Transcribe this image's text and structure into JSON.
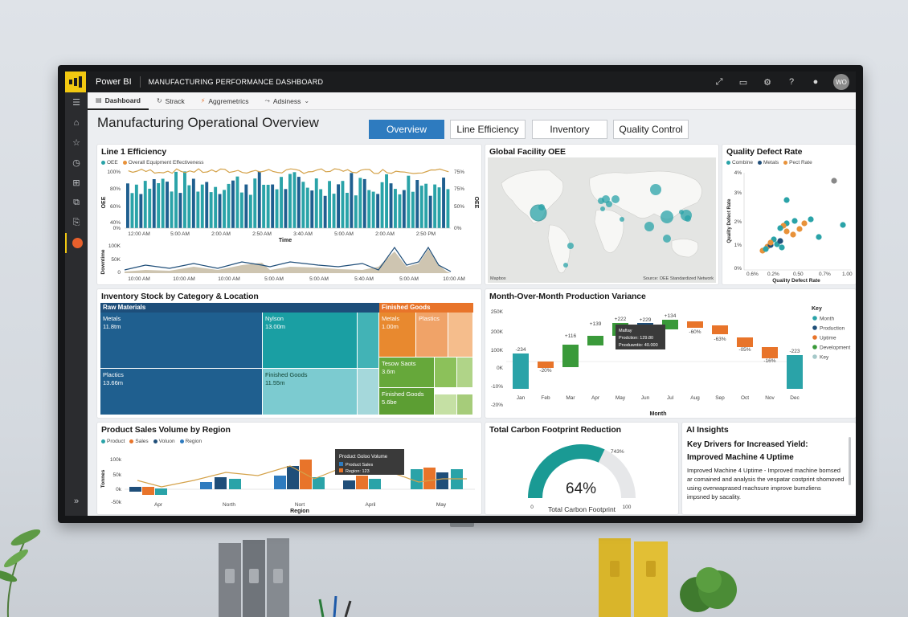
{
  "app": {
    "name": "Power BI",
    "report": "MANUFACTURING PERFORMANCE DASHBOARD",
    "avatar": "WO",
    "topbar_icons": [
      "expand-icon",
      "present-icon",
      "gear-icon",
      "help-icon",
      "feedback-icon"
    ]
  },
  "subnav": {
    "items": [
      {
        "label": "Dashboard",
        "icon": "dashboard-icon",
        "active": true
      },
      {
        "label": "Strack",
        "icon": "refresh-icon"
      },
      {
        "label": "Aggremetrics",
        "icon": "metrics-icon"
      },
      {
        "label": "Adsiness",
        "icon": "share-icon"
      }
    ]
  },
  "rail": {
    "items": [
      "menu-icon",
      "home-icon",
      "star-icon",
      "clock-icon",
      "apps-icon",
      "workspace-icon",
      "deploy-icon",
      "app-logo-icon"
    ],
    "bottom": "expand-chevron-icon"
  },
  "page": {
    "title": "Manufacturing Operational Overview"
  },
  "tabs": [
    {
      "label": "Overview",
      "active": true
    },
    {
      "label": "Line Efficiency"
    },
    {
      "label": "Inventory"
    },
    {
      "label": "Quality Control"
    }
  ],
  "line_eff": {
    "title": "Line 1 Efficiency",
    "legend": [
      {
        "label": "OEE",
        "color": "#2aa3a8"
      },
      {
        "label": "Overall Equipment Effectiveness",
        "color": "#e8923a"
      }
    ],
    "ylabel_left": "OEE",
    "ylabel_right": "OEE",
    "y_left": [
      "100%",
      "80%",
      "60%",
      "40%",
      "0%"
    ],
    "y_right": [
      "75%",
      "75%",
      "50%",
      "25%",
      "0%"
    ],
    "x_ticks": [
      "12:00 AM",
      "5:00 AM",
      "2:00 AM",
      "2:50 AM",
      "3:40 AM",
      "5:00 AM",
      "2:00 AM",
      "2:50 PM"
    ],
    "xlabel": "Time",
    "lower_ylabel": "Downtime",
    "lower_y": [
      "100K",
      "50K",
      "0"
    ],
    "lower_x": [
      "10:00 AM",
      "10:00 AM",
      "10:00 AM",
      "5:00 AM",
      "5:00 AM",
      "5:40 AM",
      "5:00 AM",
      "10:00 AM"
    ]
  },
  "global_oee": {
    "title": "Global Facility OEE",
    "attribution_left": "Mapbox",
    "attribution_right": "Source: OEE Standardized Network"
  },
  "quality": {
    "title": "Quality Defect Rate",
    "legend": [
      {
        "label": "Combine",
        "color": "#2aa3a8"
      },
      {
        "label": "Metals",
        "color": "#1f4e79"
      },
      {
        "label": "Pect Rate",
        "color": "#e8923a"
      }
    ],
    "ylabel": "Quality Defect Rate",
    "xlabel": "Quality Defect Rate",
    "y_ticks": [
      "4%",
      "3%",
      "2%",
      "1%",
      "0%"
    ],
    "x_ticks": [
      "0.6%",
      "0.2%",
      "0.50",
      "0.7%",
      "1.00"
    ]
  },
  "inventory": {
    "title": "Inventory Stock by Category & Location",
    "groups": [
      {
        "label": "Raw Materials",
        "color": "#1d4e7a"
      },
      {
        "label": "Finished Goods",
        "color": "#e8742a"
      }
    ],
    "tiles": [
      {
        "label": "Metals",
        "value": "11.8tm"
      },
      {
        "label": "Nylson",
        "value": "13.00m"
      },
      {
        "label": "Plactics",
        "value": "13.66m"
      },
      {
        "label": "Finished Goods",
        "value": "11.55m"
      },
      {
        "label": "Metals",
        "value": "1.00m"
      },
      {
        "label": "Plastics",
        "value": ""
      },
      {
        "label": "Tesow Saots",
        "value": "3.6m"
      },
      {
        "label": "Finished Goods",
        "value": "5.6be"
      }
    ]
  },
  "mom": {
    "title": "Month-Over-Month Production Variance",
    "y_ticks": [
      "250K",
      "200K",
      "100K",
      "0K",
      "-10%",
      "-20%"
    ],
    "months": [
      "Jan",
      "Feb",
      "Mar",
      "Apr",
      "May",
      "Jun",
      "Jul",
      "Aug",
      "Sep",
      "Oct",
      "Nov",
      "Dec"
    ],
    "labels": [
      "-234",
      "-20%",
      "+116",
      "+139",
      "+222",
      "+229",
      "+134",
      "-60%",
      "-63%",
      "-05%",
      "-16%",
      "-223"
    ],
    "xlabel": "Month",
    "key_title": "Key",
    "key": [
      {
        "label": "Month",
        "color": "#2aa3a8"
      },
      {
        "label": "Production",
        "color": "#1f4e79"
      },
      {
        "label": "Uptime",
        "color": "#e8742a"
      },
      {
        "label": "Development",
        "color": "#3a9a3a"
      },
      {
        "label": "Key",
        "color": "#a5c8c9"
      }
    ],
    "tooltip": [
      "Maftay",
      "Prodction: 129.80",
      "Pnoduwntio: 40.000"
    ]
  },
  "product_sales": {
    "title": "Product Sales Volume by Region",
    "legend": [
      {
        "label": "Product",
        "color": "#2aa3a8"
      },
      {
        "label": "Sales",
        "color": "#e8742a"
      },
      {
        "label": "Voluon",
        "color": "#1f4e79"
      },
      {
        "label": "Region",
        "color": "#2e7bbf"
      }
    ],
    "ylabel": "Tonnes",
    "y_ticks": [
      "100k",
      "50k",
      "0k",
      "-50k"
    ],
    "regions": [
      "Apr",
      "North",
      "Nort Region",
      "April",
      "May"
    ],
    "region_labels": [
      "Apr",
      "North",
      "Nort",
      "April",
      "May"
    ],
    "xlabel": "Region",
    "tooltip": {
      "title": "Product Goloo Volume",
      "rows": [
        {
          "label": "Product Sales",
          "color": "#2e7bbf"
        },
        {
          "label": "Region: 123",
          "color": "#e8742a"
        }
      ]
    }
  },
  "carbon": {
    "title": "Total Carbon Footprint Reduction",
    "value": "64%",
    "min": "0",
    "max": "100",
    "target": "743%",
    "caption": "Total Carbon Footprint",
    "fill": 0.64
  },
  "ai": {
    "title": "AI Insights",
    "heading1": "Key Drivers for Increased Yield:",
    "heading2": "Improved Machine 4 Uptime",
    "body": "Improved Machine 4 Uptime - Improved machine bomsed ar comained and analysis the vespatar costprint shomoved using overwaprased machsure improve bumzliens impsned by sacality."
  }
}
